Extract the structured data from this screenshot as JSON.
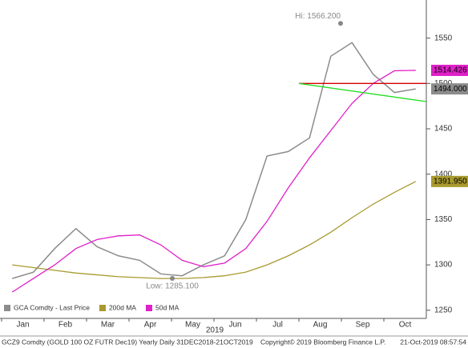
{
  "chart_data": {
    "type": "line",
    "categories": [
      "Jan",
      null,
      "Feb",
      null,
      "Mar",
      null,
      "Apr",
      null,
      "May",
      null,
      "Jun",
      null,
      "Jul",
      null,
      "Aug",
      null,
      "Sep",
      null,
      "Oct",
      null
    ],
    "year_label": "2019",
    "series": [
      {
        "name": "GCA Comdty - Last Price",
        "color": "#8c8c8c",
        "last_label": "1494.000",
        "values": [
          1285,
          1292,
          1318,
          1340,
          1320,
          1310,
          1305,
          1290,
          1288,
          1300,
          1310,
          1350,
          1420,
          1425,
          1440,
          1530,
          1545,
          1510,
          1490,
          1494
        ]
      },
      {
        "name": "200d MA",
        "color": "#a89a2e",
        "last_label": "1391.950",
        "values": [
          1300,
          1297,
          1294,
          1291,
          1289,
          1287,
          1286,
          1285,
          1285,
          1286,
          1288,
          1292,
          1300,
          1310,
          1322,
          1336,
          1352,
          1367,
          1380,
          1391.95
        ]
      },
      {
        "name": "50d MA",
        "color": "#e020c8",
        "last_label": "1514.426",
        "values": [
          1270,
          1285,
          1300,
          1318,
          1328,
          1332,
          1333,
          1322,
          1305,
          1298,
          1302,
          1318,
          1348,
          1385,
          1418,
          1448,
          1478,
          1500,
          1514,
          1514.426
        ]
      }
    ],
    "trendlines": [
      {
        "color": "#d40000",
        "start": 1500,
        "end": 1500
      },
      {
        "color": "#22dd22",
        "start": 1500,
        "end": 1480
      }
    ],
    "annotations": [
      {
        "label": "Hi: 1566.200",
        "value": 1566.2
      },
      {
        "label": "Low: 1285.100",
        "value": 1285.1
      }
    ],
    "ylim": [
      1241,
      1592
    ],
    "yticks": [
      1250,
      1300,
      1350,
      1400,
      1450,
      1500,
      1550
    ],
    "footer": "GCZ9 Comdty (GOLD 100 OZ FUTR  Dec19) Yearly  Daily 31DEC2018-21OCT2019",
    "copyright": "Copyright© 2019 Bloomberg Finance L.P.",
    "timestamp": "21-Oct-2019 08:57:54"
  }
}
